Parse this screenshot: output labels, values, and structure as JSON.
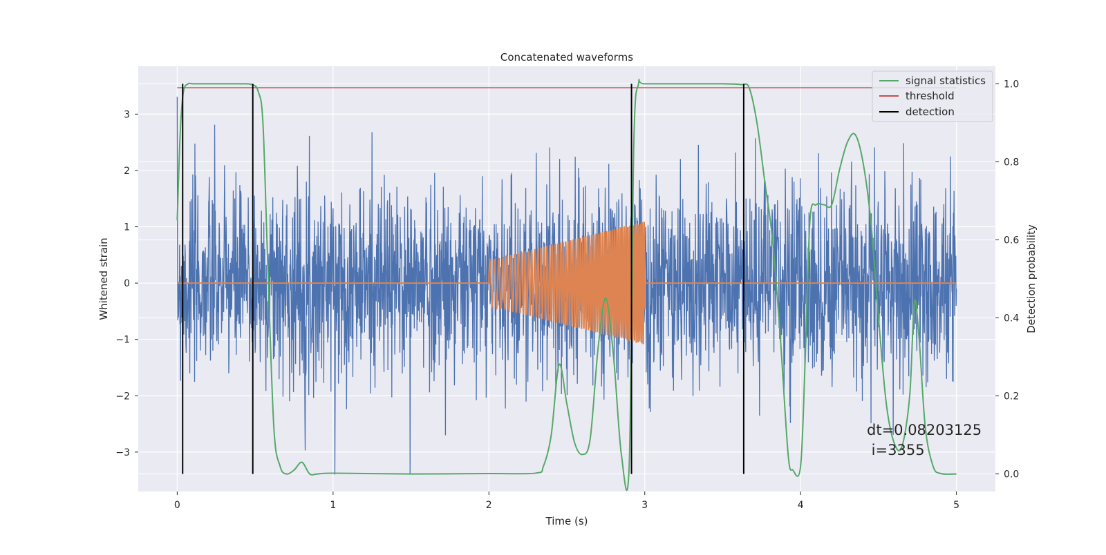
{
  "chart_data": {
    "type": "line",
    "title": "Concatenated waveforms",
    "xlabel": "Time (s)",
    "ylabel": "Whitened strain",
    "y2label": "Detection probability",
    "xlim": [
      -0.25,
      5.25
    ],
    "ylim": [
      -3.7,
      3.85
    ],
    "y2lim": [
      -0.045,
      1.045
    ],
    "x_ticks": [
      "0",
      "1",
      "2",
      "3",
      "4",
      "5"
    ],
    "x_tick_values": [
      0,
      1,
      2,
      3,
      4,
      5
    ],
    "y_ticks": [
      "3",
      "2",
      "1",
      "0",
      "−1",
      "−2",
      "−3"
    ],
    "y_tick_values": [
      3,
      2,
      1,
      0,
      -1,
      -2,
      -3
    ],
    "y2_ticks": [
      "1.0",
      "0.8",
      "0.6",
      "0.4",
      "0.2",
      "0.0"
    ],
    "y2_tick_values": [
      1.0,
      0.8,
      0.6,
      0.4,
      0.2,
      0.0
    ],
    "grid": true,
    "legend_position": "top-right",
    "series": [
      {
        "name": "",
        "kind": "noise",
        "color": "#4c72b0",
        "x_range": [
          0,
          5
        ],
        "approx_std": 0.85,
        "approx_range": [
          -3.4,
          3.5
        ]
      },
      {
        "name": "",
        "kind": "chirp",
        "color": "#dd8452",
        "x_range": [
          0,
          5
        ],
        "chirp_start": 2.0,
        "chirp_end": 3.0,
        "chirp_amplitude": [
          0.4,
          1.1
        ],
        "chirp_frequency_hz": [
          33,
          90
        ]
      },
      {
        "name": "signal statistics",
        "axis": "right",
        "color": "#55a868",
        "x": [
          0,
          0.02,
          0.04,
          0.07,
          0.1,
          0.2,
          0.3,
          0.4,
          0.48,
          0.52,
          0.55,
          0.58,
          0.62,
          0.66,
          0.7,
          0.75,
          0.8,
          0.85,
          0.9,
          1.0,
          1.5,
          2.0,
          2.3,
          2.35,
          2.4,
          2.45,
          2.5,
          2.55,
          2.6,
          2.65,
          2.7,
          2.75,
          2.8,
          2.85,
          2.9,
          2.93,
          2.96,
          3.0,
          3.3,
          3.5,
          3.62,
          3.67,
          3.72,
          3.77,
          3.82,
          3.87,
          3.92,
          3.95,
          4.0,
          4.03,
          4.06,
          4.1,
          4.15,
          4.2,
          4.25,
          4.3,
          4.35,
          4.4,
          4.45,
          4.5,
          4.55,
          4.6,
          4.65,
          4.7,
          4.73,
          4.76,
          4.8,
          4.85,
          4.9,
          5.0
        ],
        "values": [
          0.65,
          0.88,
          0.98,
          1.0,
          1.0,
          1.0,
          1.0,
          1.0,
          0.998,
          0.98,
          0.9,
          0.55,
          0.12,
          0.02,
          0.0,
          0.01,
          0.03,
          0.0,
          0.0,
          0.002,
          0.0,
          0.001,
          0.002,
          0.02,
          0.1,
          0.28,
          0.18,
          0.08,
          0.05,
          0.09,
          0.32,
          0.45,
          0.3,
          0.05,
          0.02,
          0.85,
          1.0,
          1.0,
          1.0,
          1.0,
          0.998,
          0.99,
          0.9,
          0.75,
          0.6,
          0.35,
          0.05,
          0.01,
          0.02,
          0.3,
          0.65,
          0.69,
          0.69,
          0.69,
          0.78,
          0.85,
          0.87,
          0.8,
          0.65,
          0.4,
          0.18,
          0.08,
          0.07,
          0.2,
          0.44,
          0.35,
          0.12,
          0.02,
          0.001,
          0.0
        ]
      },
      {
        "name": "threshold",
        "axis": "right",
        "color": "#c44e52",
        "x": [
          0,
          5
        ],
        "values": [
          0.99,
          0.99
        ]
      },
      {
        "name": "detection",
        "axis": "right",
        "color": "#000000",
        "vlines_x": [
          0.035,
          0.485,
          2.915,
          3.635
        ],
        "vline_range": [
          0.0,
          1.0
        ]
      }
    ],
    "annotation": {
      "line1": "dt=0.08203125",
      "line2": " i=3355"
    }
  }
}
